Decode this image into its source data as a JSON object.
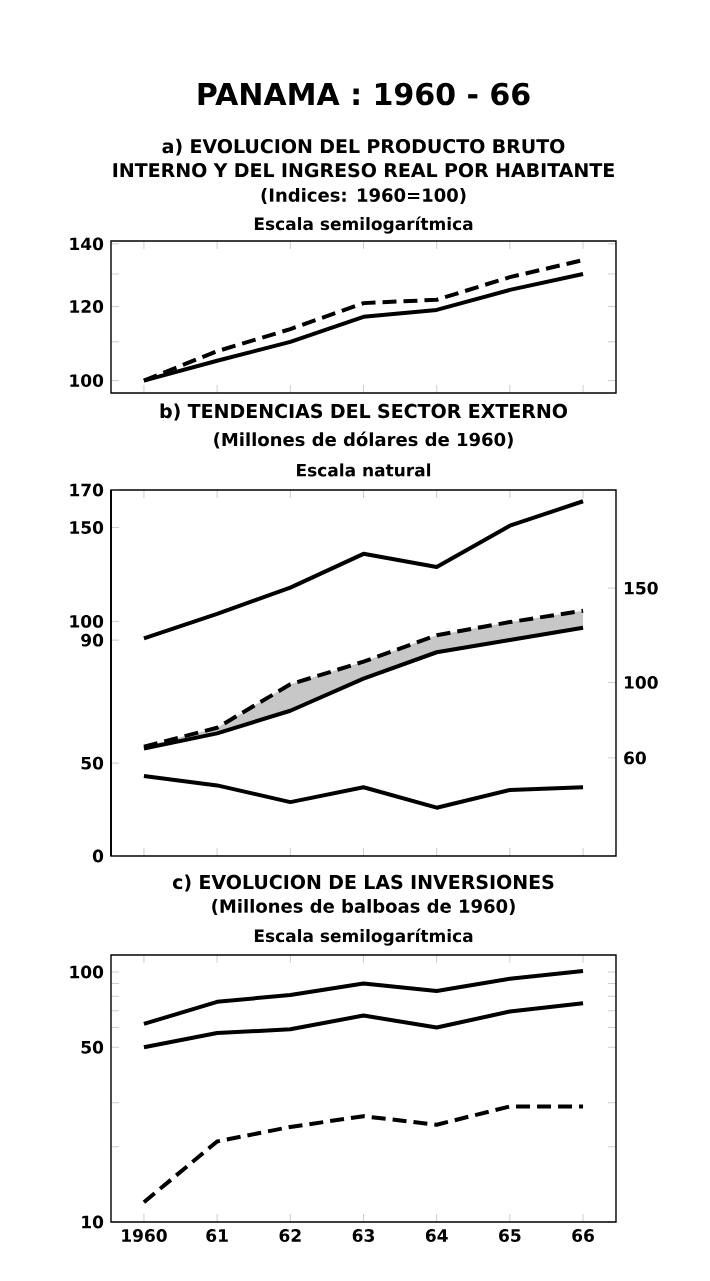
{
  "chart_data": [
    {
      "type": "line",
      "title": "a) EVOLUCION DEL PRODUCTO BRUTO INTERNO Y DEL INGRESO REAL POR HABITANTE",
      "subtitle": "(Indices: 1960=100)",
      "annotations": [
        "PANAMA : 1960 - 66",
        "Escala semilogarítmica"
      ],
      "categories": [
        "1960",
        "61",
        "62",
        "63",
        "64",
        "65",
        "66"
      ],
      "log": true,
      "tick_labels": "y",
      "ylim": [
        97,
        141
      ],
      "yticks": [
        100,
        {
          "value": 110,
          "label": null
        },
        120,
        {
          "value": 130,
          "label": null
        },
        140
      ],
      "series": [
        {
          "color": "#000000",
          "line_style": "dashed",
          "values": [
            100,
            107.5,
            113.5,
            121,
            122,
            129,
            134.5
          ]
        },
        {
          "color": "#000000",
          "line_style": "solid",
          "values": [
            100,
            105,
            110,
            117,
            119,
            125,
            130
          ]
        }
      ]
    },
    {
      "type": "line",
      "title": "b) TENDENCIAS DEL SECTOR EXTERNO",
      "subtitle": "(Millones de dólares de 1960)",
      "annotations": [
        "Escala natural"
      ],
      "categories": [
        "1960",
        "61",
        "62",
        "63",
        "64",
        "65",
        "66"
      ],
      "tick_labels": "y",
      "ylim": [
        -25,
        170
      ],
      "yticks": [
        90,
        100,
        150,
        170
      ],
      "y2lim": [
        8,
        202
      ],
      "y2ticks": [
        60,
        100,
        150
      ],
      "y3lim": [
        0,
        197
      ],
      "y3ticks": [
        0,
        50
      ],
      "series": [
        {
          "color": "#000000",
          "line_style": "solid",
          "axis": "y",
          "values": [
            91,
            104,
            118,
            136,
            129,
            151,
            164
          ]
        },
        {
          "color": "#000000",
          "line_style": "dashed",
          "axis": "y2",
          "values": [
            66,
            76,
            99,
            111,
            125,
            132,
            138
          ],
          "lower": [
            65,
            73,
            85,
            102,
            116,
            122.5,
            129
          ],
          "upper": [
            66,
            76,
            99,
            111,
            125,
            132,
            138
          ]
        },
        {
          "color": "#000000",
          "line_style": "solid",
          "axis": "y2",
          "values": [
            65,
            73,
            85,
            102,
            116,
            122.5,
            129
          ]
        },
        {
          "color": "#000000",
          "line_style": "solid",
          "axis": "y3",
          "values": [
            43,
            38,
            29,
            37,
            26,
            35.5,
            37
          ]
        }
      ]
    },
    {
      "type": "line",
      "title": "c) EVOLUCION DE LAS INVERSIONES",
      "subtitle": "(Millones de balboas de 1960)",
      "annotations": [
        "Escala semilogarítmica"
      ],
      "categories": [
        "1960",
        "61",
        "62",
        "63",
        "64",
        "65",
        "66"
      ],
      "log": true,
      "ylim": [
        10,
        117
      ],
      "yticks": [
        10,
        {
          "value": 20,
          "label": null
        },
        {
          "value": 30,
          "label": null
        },
        50,
        {
          "value": 60,
          "label": null
        },
        {
          "value": 70,
          "label": null
        },
        {
          "value": 80,
          "label": null
        },
        {
          "value": 90,
          "label": null
        },
        100
      ],
      "series": [
        {
          "color": "#000000",
          "line_style": "solid",
          "values": [
            62,
            76,
            81,
            90,
            84,
            94,
            101
          ]
        },
        {
          "color": "#000000",
          "line_style": "solid",
          "values": [
            50,
            57,
            59,
            67,
            60,
            69.5,
            75
          ]
        },
        {
          "color": "#000000",
          "line_style": "dashed",
          "values": [
            12,
            21,
            24,
            26.5,
            24.5,
            29,
            29
          ]
        }
      ]
    }
  ]
}
